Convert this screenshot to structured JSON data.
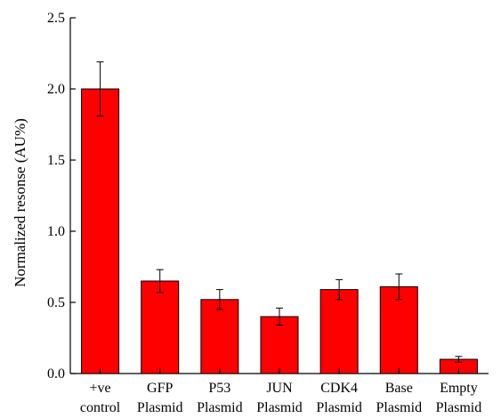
{
  "chart_data": {
    "type": "bar",
    "categories": [
      [
        "+ve",
        "control"
      ],
      [
        "GFP",
        "Plasmid"
      ],
      [
        "P53",
        "Plasmid"
      ],
      [
        "JUN",
        "Plasmid"
      ],
      [
        "CDK4",
        "Plasmid"
      ],
      [
        "Base",
        "Plasmid"
      ],
      [
        "Empty",
        "Plasmid"
      ]
    ],
    "values": [
      2.0,
      0.65,
      0.52,
      0.4,
      0.59,
      0.61,
      0.1
    ],
    "errors": [
      0.19,
      0.08,
      0.07,
      0.06,
      0.07,
      0.09,
      0.02
    ],
    "ylabel": "Normalized resonse (AU%)",
    "xlabel": "",
    "ylim": [
      0,
      2.5
    ],
    "yticks": [
      "0.0",
      "0.5",
      "1.0",
      "1.5",
      "2.0",
      "2.5"
    ],
    "bar_color": "#ff0000",
    "grid": false
  }
}
